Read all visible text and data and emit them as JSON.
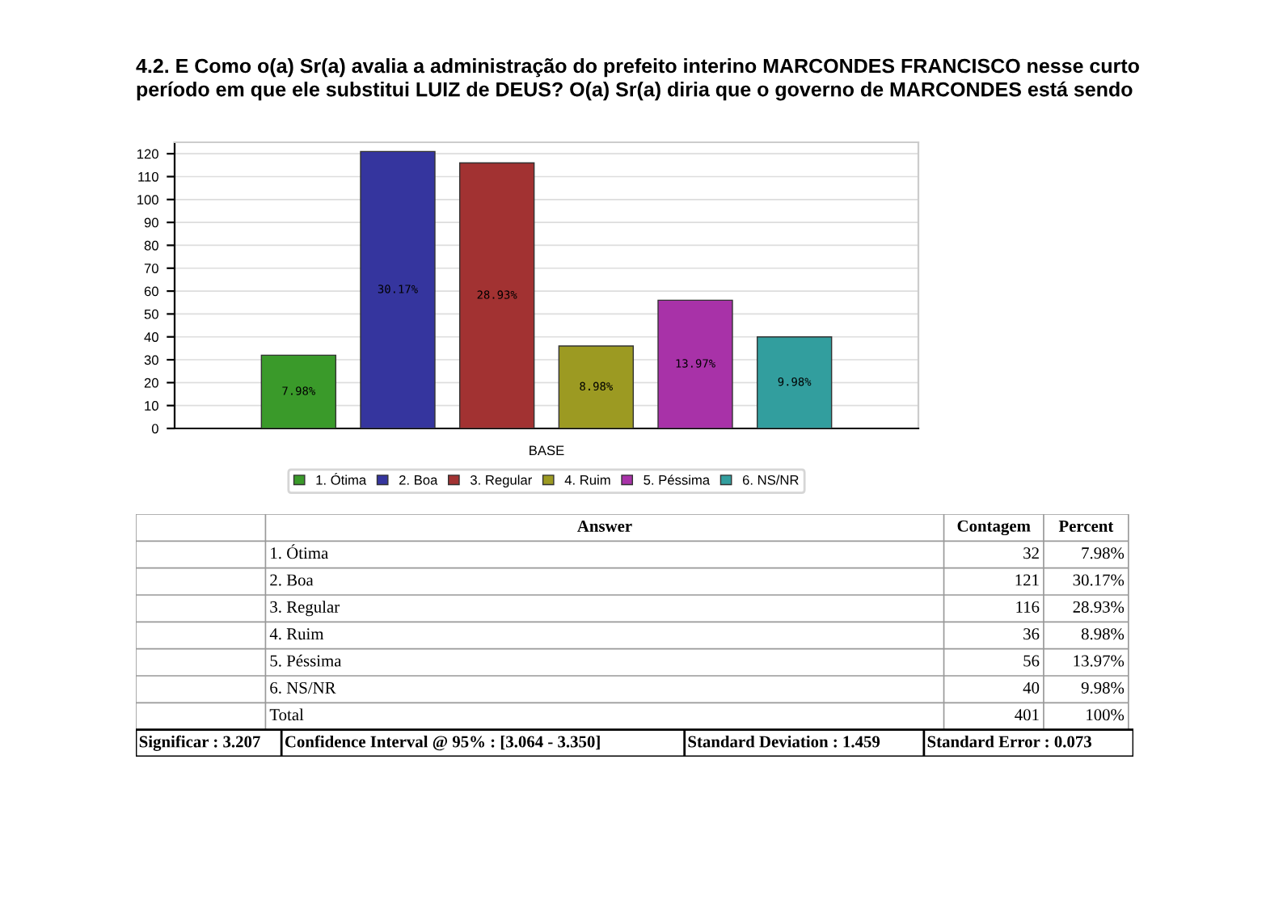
{
  "chart_data": [
    {
      "type": "bar",
      "title": "4.2. E Como o(a) Sr(a) avalia a administração do prefeito interino MARCONDES FRANCISCO nesse curto\nperíodo em que ele substitui LUIZ de DEUS? O(a) Sr(a) diria que o governo de MARCONDES está sendo",
      "xlabel": "BASE",
      "categories": [
        null
      ],
      "series": [
        {
          "name": "1. Ótima",
          "color": "#3a9a2a",
          "values": [
            32
          ]
        },
        {
          "name": "2. Boa",
          "color": "#35359e",
          "values": [
            121
          ]
        },
        {
          "name": "3. Regular",
          "color": "#a23232",
          "values": [
            116
          ]
        },
        {
          "name": "4. Ruim",
          "color": "#9c9a22",
          "values": [
            36
          ]
        },
        {
          "name": "5. Péssima",
          "color": "#a832a8",
          "values": [
            56
          ]
        },
        {
          "name": "6. NS/NR",
          "color": "#329e9e",
          "values": [
            40
          ]
        }
      ],
      "annotations": [
        "7.98%",
        "30.17%",
        "28.93%",
        "8.98%",
        "13.97%",
        "9.98%"
      ],
      "ylim": [
        0,
        125
      ],
      "yticks": [
        0,
        10,
        20,
        30,
        40,
        50,
        60,
        70,
        80,
        90,
        100,
        110,
        120
      ],
      "grid": "y",
      "legend": "bottom"
    },
    {
      "type": "other",
      "categories": [
        "1. Ótima",
        "2. Boa",
        "3. Regular",
        "4. Ruim",
        "5. Péssima",
        "6. NS/NR",
        "Total"
      ],
      "series": [
        {
          "name": "Contagem",
          "values": [
            32,
            121,
            116,
            36,
            56,
            40,
            401
          ]
        },
        {
          "name": "Percent",
          "values": [
            7.98,
            30.17,
            28.93,
            8.98,
            13.97,
            9.98,
            100
          ],
          "value_labels": [
            "7.98%",
            "30.17%",
            "28.93%",
            "8.98%",
            "13.97%",
            "9.98%",
            "100%"
          ]
        }
      ],
      "data_labels": true,
      "annotations": [
        "Answer",
        "Significar : 3.207",
        "Confidence Interval @ 95% : [3.064 - 3.350]",
        "Standard Deviation : 1.459",
        "Standard Error : 0.073"
      ]
    }
  ]
}
